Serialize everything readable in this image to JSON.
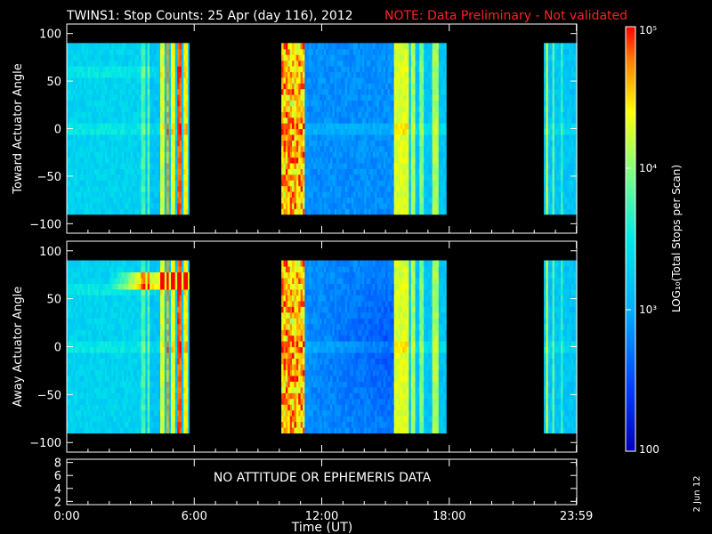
{
  "title": "TWINS1: Stop Counts: 25 Apr (day 116), 2012",
  "note": "NOTE: Data Preliminary - Not validated",
  "date_stamp": "2 Jun 12",
  "chart_data": [
    {
      "type": "heatmap",
      "panel": "top",
      "ylabel": "Toward Actuator Angle",
      "ylim": [
        -110,
        110
      ],
      "yticks": [
        100,
        50,
        0,
        -50,
        -100
      ],
      "xlim": [
        0,
        24
      ],
      "data_y_range": [
        -90,
        90
      ],
      "segments": [
        {
          "start": 0.0,
          "end": 5.75
        },
        {
          "start": 10.1,
          "end": 17.85
        },
        {
          "start": 22.45,
          "end": 24.0
        }
      ]
    },
    {
      "type": "heatmap",
      "panel": "middle",
      "ylabel": "Away Actuator Angle",
      "ylim": [
        -110,
        110
      ],
      "yticks": [
        100,
        50,
        0,
        -50,
        -100
      ],
      "xlim": [
        0,
        24
      ],
      "data_y_range": [
        -90,
        90
      ],
      "segments": [
        {
          "start": 0.0,
          "end": 5.75
        },
        {
          "start": 10.1,
          "end": 17.85
        },
        {
          "start": 22.45,
          "end": 24.0
        }
      ]
    },
    {
      "type": "line",
      "panel": "bottom",
      "ylim": [
        1.5,
        8.5
      ],
      "yticks": [
        8,
        6,
        4,
        2
      ],
      "message": "NO ATTITUDE OR EPHEMERIS DATA",
      "xlabel": "Time (UT)",
      "xticks": [
        {
          "v": 0,
          "label": "0:00"
        },
        {
          "v": 6,
          "label": "6:00"
        },
        {
          "v": 12,
          "label": "12:00"
        },
        {
          "v": 18,
          "label": "18:00"
        },
        {
          "v": 23.983,
          "label": "23:59"
        }
      ]
    }
  ],
  "colorbar": {
    "label": "LOG₁₀(Total Stops per Scan)",
    "scale": "log",
    "range": [
      100,
      100000
    ],
    "ticks": [
      {
        "value": 100,
        "label": "100"
      },
      {
        "value": 1000,
        "label": "10³"
      },
      {
        "value": 10000,
        "label": "10⁴"
      },
      {
        "value": 100000,
        "label": "10⁵"
      }
    ]
  }
}
